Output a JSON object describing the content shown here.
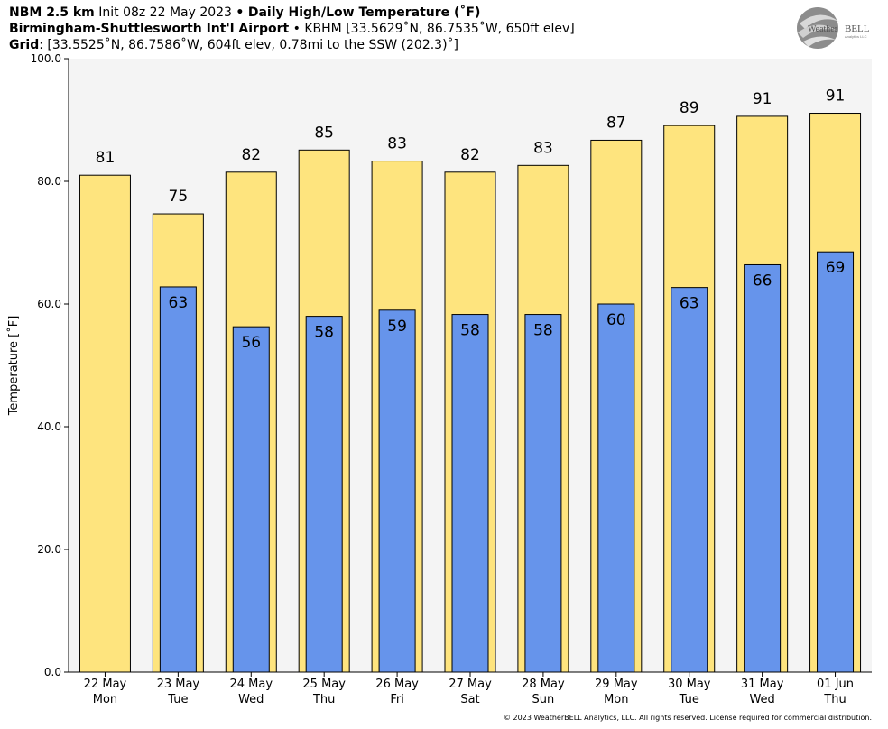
{
  "header": {
    "line1": {
      "model": "NBM 2.5 km",
      "init": "Init 08z 22 May 2023",
      "sep": "•",
      "product": "Daily High/Low Temperature (˚F)"
    },
    "line2": {
      "station": "Birmingham-Shuttlesworth Int'l Airport",
      "sep": "•",
      "details": "KBHM [33.5629˚N, 86.7535˚W, 650ft elev]"
    },
    "line3": {
      "label": "Grid",
      "details": ": [33.5525˚N, 86.7586˚W, 604ft elev, 0.78mi to the SSW (202.3)˚]"
    }
  },
  "logo": {
    "text_prefix": "Weather",
    "text_suffix": "BELL",
    "tagline": "Analytics LLC"
  },
  "copyright": "© 2023 WeatherBELL Analytics, LLC. All rights reserved. License required for commercial distribution.",
  "colors": {
    "high": "#fee47e",
    "low": "#6694eb",
    "plot_bg": "#f4f4f4",
    "edge": "#000000"
  },
  "chart_data": {
    "type": "bar",
    "title": "Daily High/Low Temperature (˚F)",
    "xlabel": "",
    "ylabel": "Temperature [˚F]",
    "ylim": [
      0,
      100
    ],
    "yticks": [
      "0.0",
      "20.0",
      "40.0",
      "60.0",
      "80.0",
      "100.0"
    ],
    "grid": false,
    "categories": [
      "22 May\nMon",
      "23 May\nTue",
      "24 May\nWed",
      "25 May\nThu",
      "26 May\nFri",
      "27 May\nSat",
      "28 May\nSun",
      "29 May\nMon",
      "30 May\nTue",
      "31 May\nWed",
      "01 Jun\nThu"
    ],
    "series": [
      {
        "values": [
          81.0,
          74.7,
          81.5,
          85.1,
          83.3,
          81.5,
          82.6,
          86.7,
          89.1,
          90.6,
          91.1
        ],
        "labels": [
          "81",
          "75",
          "82",
          "85",
          "83",
          "82",
          "83",
          "87",
          "89",
          "91",
          "91"
        ]
      },
      {
        "values": [
          null,
          62.8,
          56.3,
          58.0,
          59.0,
          58.3,
          58.3,
          60.0,
          62.7,
          66.4,
          68.5
        ],
        "labels": [
          "",
          "63",
          "56",
          "58",
          "59",
          "58",
          "58",
          "60",
          "63",
          "66",
          "69"
        ]
      }
    ]
  }
}
